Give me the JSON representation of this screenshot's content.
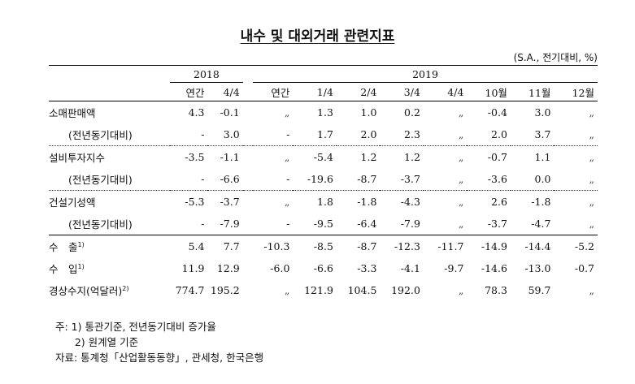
{
  "title": "내수 및 대외거래 관련지표",
  "unit": "(S.A., 전기대비, %)",
  "header": {
    "year_2018": "2018",
    "year_2019": "2019",
    "periods_2018": [
      "연간",
      "4/4"
    ],
    "periods_2019": [
      "연간",
      "1/4",
      "2/4",
      "3/4",
      "4/4",
      "10월",
      "11월",
      "12월"
    ]
  },
  "rows": [
    {
      "label": "소매판매액",
      "sub": false,
      "values": [
        "4.3",
        "-0.1",
        "„",
        "1.3",
        "1.0",
        "0.2",
        "„",
        "-0.4",
        "3.0",
        "„"
      ]
    },
    {
      "label": "(전년동기대비)",
      "sub": true,
      "values": [
        "-",
        "3.0",
        "-",
        "1.7",
        "2.0",
        "2.3",
        "„",
        "2.0",
        "3.7",
        "„"
      ]
    },
    {
      "label": "설비투자지수",
      "sub": false,
      "values": [
        "-3.5",
        "-1.1",
        "„",
        "-5.4",
        "1.2",
        "1.2",
        "„",
        "-0.7",
        "1.1",
        "„"
      ]
    },
    {
      "label": "(전년동기대비)",
      "sub": true,
      "values": [
        "-",
        "-6.6",
        "-",
        "-19.6",
        "-8.7",
        "-3.7",
        "„",
        "-3.6",
        "0.0",
        "„"
      ]
    },
    {
      "label": "건설기성액",
      "sub": false,
      "values": [
        "-5.3",
        "-3.7",
        "„",
        "1.8",
        "-1.8",
        "-4.3",
        "„",
        "2.6",
        "-1.8",
        "„"
      ]
    },
    {
      "label": "(전년동기대비)",
      "sub": true,
      "values": [
        "-",
        "-7.9",
        "-",
        "-9.5",
        "-6.4",
        "-7.9",
        "„",
        "-3.7",
        "-4.7",
        "„"
      ]
    },
    {
      "label": "수　출",
      "sup": "1)",
      "sub": false,
      "values": [
        "5.4",
        "7.7",
        "-10.3",
        "-8.5",
        "-8.7",
        "-12.3",
        "-11.7",
        "-14.9",
        "-14.4",
        "-5.2"
      ]
    },
    {
      "label": "수　입",
      "sup": "1)",
      "sub": false,
      "values": [
        "11.9",
        "12.9",
        "-6.0",
        "-6.6",
        "-3.3",
        "-4.1",
        "-9.7",
        "-14.6",
        "-13.0",
        "-0.7"
      ]
    },
    {
      "label": "경상수지(억달러)",
      "sup": "2)",
      "sub": false,
      "values": [
        "774.7",
        "195.2",
        "„",
        "121.9",
        "104.5",
        "192.0",
        "„",
        "78.3",
        "59.7",
        "„"
      ]
    }
  ],
  "notes": [
    "주: 1) 통관기준, 전년동기대비 증가율",
    "      2) 원계열 기준",
    "자료: 통계청「산업활동동향」, 관세청, 한국은행"
  ]
}
